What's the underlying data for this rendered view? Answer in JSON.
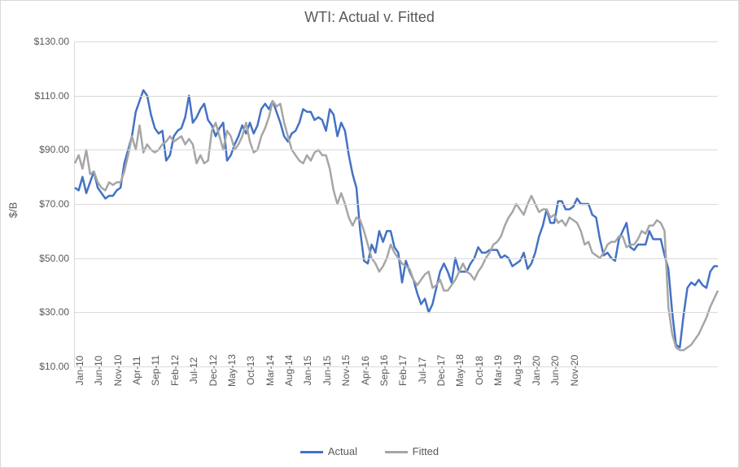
{
  "chart": {
    "type": "line",
    "title": "WTI: Actual v. Fitted",
    "title_fontsize": 18,
    "title_color": "#595959",
    "ylabel": "$/B",
    "ylabel_fontsize": 13,
    "background_color": "#ffffff",
    "border_color": "#d9d9d9",
    "grid_color": "#d9d9d9",
    "line_width": 2.5,
    "ylim": [
      10,
      130
    ],
    "ytick_step": 20,
    "yticks": [
      "$10.00",
      "$30.00",
      "$50.00",
      "$70.00",
      "$90.00",
      "$110.00",
      "$130.00"
    ],
    "series": [
      {
        "name": "Actual",
        "color": "#4472c4",
        "values": [
          76,
          75,
          80,
          74,
          78,
          82,
          76,
          74,
          72,
          73,
          73,
          75,
          76,
          85,
          90,
          95,
          104,
          108,
          112,
          110,
          103,
          98,
          96,
          97,
          86,
          88,
          95,
          97,
          98,
          102,
          110,
          100,
          102,
          105,
          107,
          101,
          99,
          95,
          98,
          100,
          86,
          88,
          92,
          95,
          99,
          96,
          100,
          96,
          99,
          105,
          107,
          105,
          108,
          104,
          100,
          95,
          93,
          96,
          97,
          100,
          105,
          104,
          104,
          101,
          102,
          101,
          97,
          105,
          103,
          95,
          100,
          97,
          88,
          81,
          76,
          60,
          49,
          48,
          55,
          52,
          60,
          56,
          60,
          60,
          54,
          52,
          41,
          49,
          45,
          42,
          37,
          33,
          35,
          30,
          33,
          39,
          45,
          48,
          45,
          41,
          50,
          45,
          45,
          45,
          48,
          50,
          54,
          52,
          52,
          53,
          53,
          53,
          50,
          51,
          50,
          47,
          48,
          49,
          52,
          46,
          48,
          52,
          58,
          62,
          68,
          63,
          63,
          71,
          71,
          68,
          68,
          69,
          72,
          70,
          70,
          70,
          66,
          65,
          57,
          51,
          52,
          50,
          49,
          57,
          60,
          63,
          54,
          53,
          55,
          55,
          55,
          60,
          57,
          57,
          57,
          51,
          46,
          30,
          18,
          17,
          29,
          39,
          41,
          40,
          42,
          40,
          39,
          45,
          47,
          47
        ]
      },
      {
        "name": "Fitted",
        "color": "#a6a6a6",
        "values": [
          85,
          88,
          83,
          90,
          81,
          82,
          78,
          76,
          75,
          78,
          77,
          78,
          78,
          82,
          88,
          95,
          90,
          99,
          89,
          92,
          90,
          89,
          90,
          92,
          93,
          95,
          93,
          94,
          95,
          92,
          94,
          92,
          85,
          88,
          85,
          86,
          97,
          100,
          95,
          90,
          97,
          95,
          90,
          92,
          95,
          100,
          93,
          89,
          90,
          95,
          98,
          102,
          108,
          106,
          107,
          100,
          95,
          90,
          88,
          86,
          85,
          88,
          86,
          89,
          90,
          88,
          88,
          83,
          75,
          70,
          74,
          70,
          65,
          62,
          65,
          64,
          60,
          55,
          50,
          48,
          45,
          47,
          50,
          55,
          52,
          50,
          48,
          47,
          46,
          42,
          40,
          42,
          44,
          45,
          39,
          40,
          42,
          38,
          38,
          40,
          42,
          45,
          48,
          45,
          44,
          42,
          45,
          47,
          50,
          52,
          55,
          56,
          58,
          62,
          65,
          67,
          70,
          68,
          66,
          70,
          73,
          70,
          67,
          68,
          68,
          65,
          66,
          63,
          64,
          62,
          65,
          64,
          63,
          60,
          55,
          56,
          52,
          51,
          50,
          52,
          55,
          56,
          56,
          58,
          58,
          54,
          55,
          55,
          57,
          60,
          59,
          62,
          62,
          64,
          63,
          60,
          32,
          22,
          17,
          16,
          16,
          17,
          18,
          20,
          22,
          25,
          28,
          32,
          35,
          38
        ]
      }
    ],
    "x_labels": [
      "Jan-10",
      "Jun-10",
      "Nov-10",
      "Apr-11",
      "Sep-11",
      "Feb-12",
      "Jul-12",
      "Dec-12",
      "May-13",
      "Oct-13",
      "Mar-14",
      "Aug-14",
      "Jan-15",
      "Jun-15",
      "Nov-15",
      "Apr-16",
      "Sep-16",
      "Feb-17",
      "Jul-17",
      "Dec-17",
      "May-18",
      "Oct-18",
      "Mar-19",
      "Aug-19",
      "Jan-20",
      "Jun-20",
      "Nov-20"
    ],
    "x_label_interval": 5,
    "legend": {
      "position": "bottom",
      "items": [
        "Actual",
        "Fitted"
      ]
    },
    "tick_fontsize": 12,
    "tick_color": "#595959"
  }
}
